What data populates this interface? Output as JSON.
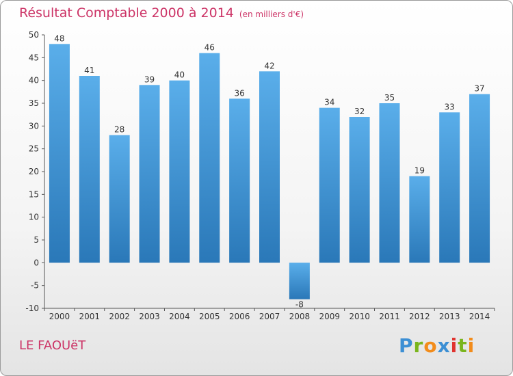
{
  "header": {
    "title": "Résultat Comptable 2000 à 2014",
    "unit": "(en milliers d'€)"
  },
  "footer": {
    "commune": "LE FAOUëT",
    "logo_letters": [
      "P",
      "r",
      "o",
      "x",
      "i",
      "t",
      "i"
    ],
    "logo_colors": [
      "#3c8fd4",
      "#7ab51d",
      "#f28c1b",
      "#3c8fd4",
      "#e0332f",
      "#7ab51d",
      "#f28c1b"
    ]
  },
  "colors": {
    "bar_top": "#5aaeea",
    "bar_bottom": "#2a78b8",
    "title": "#cc3366",
    "axis": "#555555",
    "grid": "#cccccc"
  },
  "chart_data": {
    "type": "bar",
    "title": "Résultat Comptable 2000 à 2014",
    "xlabel": "",
    "ylabel": "(en milliers d'€)",
    "categories": [
      "2000",
      "2001",
      "2002",
      "2003",
      "2004",
      "2005",
      "2006",
      "2007",
      "2008",
      "2009",
      "2010",
      "2011",
      "2012",
      "2013",
      "2014"
    ],
    "values": [
      48,
      41,
      28,
      39,
      40,
      46,
      36,
      42,
      -8,
      34,
      32,
      35,
      19,
      33,
      37
    ],
    "ylim": [
      -10,
      50
    ],
    "yticks": [
      -10,
      -5,
      0,
      5,
      10,
      15,
      20,
      25,
      30,
      35,
      40,
      45,
      50
    ],
    "grid": false
  }
}
